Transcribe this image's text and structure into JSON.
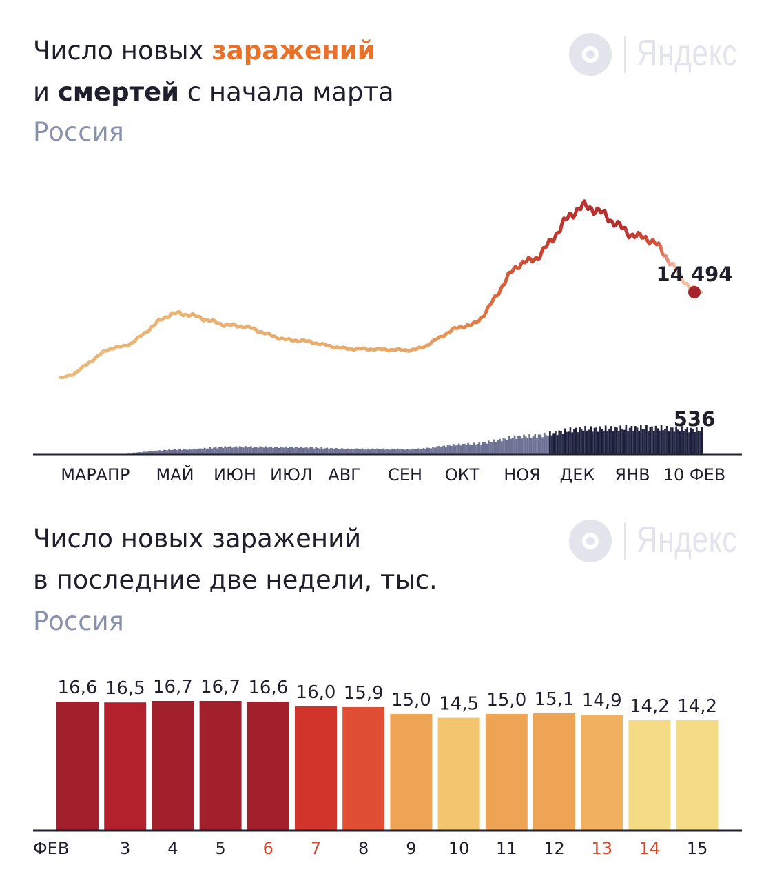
{
  "brand": {
    "logo_text": "Яндекс"
  },
  "top_chart": {
    "title_line1_plain": "Число новых ",
    "title_line1_highlight": "заражений",
    "title_line2_prefix": "и ",
    "title_line2_bold": "смертей",
    "title_line2_rest": " с начала марта",
    "subtitle": "Россия"
  },
  "bottom_chart": {
    "title_line1": "Число новых заражений",
    "title_line2": "в последние две недели, тыс.",
    "subtitle": "Россия"
  },
  "colors": {
    "light_yellow": "#f6db86",
    "yellow": "#f3c56f",
    "orange": "#eda555",
    "orange_red": "#e04f34",
    "red": "#d1342a",
    "dark_red": "#a21f2c",
    "deaths_dark": "#1c1f3a",
    "deaths_light": "#6d7295",
    "weekend_tick": "#d24a2e",
    "axis": "#1f1f2b",
    "subtitle": "#8a91ad"
  },
  "chart_data": [
    {
      "type": "line",
      "series": [
        {
          "name": "заражений",
          "x": [
            "МАР",
            "АПР",
            "МАЙ",
            "ИЮН",
            "ИЮЛ",
            "АВГ",
            "СЕН",
            "ОКТ",
            "НОЯ",
            "ДЕК",
            "ЯНВ",
            "ФЕВ"
          ],
          "values": [
            500,
            5500,
            11000,
            9000,
            6600,
            5200,
            5000,
            9000,
            19500,
            28500,
            23500,
            14494
          ]
        },
        {
          "name": "смертей",
          "type": "bar",
          "x": [
            "МАР",
            "АПР",
            "МАЙ",
            "ИЮН",
            "ИЮЛ",
            "АВГ",
            "СЕН",
            "ОКТ",
            "НОЯ",
            "ДЕК",
            "ЯНВ",
            "ФЕВ"
          ],
          "values": [
            0,
            20,
            100,
            160,
            150,
            115,
            110,
            220,
            390,
            550,
            570,
            536
          ]
        }
      ],
      "labels": {
        "last_cases": "14 494",
        "last_deaths": "536"
      },
      "x_ticks": [
        "МАР",
        "АПР",
        "МАЙ",
        "ИЮН",
        "ИЮЛ",
        "АВГ",
        "СЕН",
        "ОКТ",
        "НОЯ",
        "ДЕК",
        "ЯНВ",
        "10 ФЕВ"
      ]
    },
    {
      "type": "bar",
      "categories": [
        "ФЕВ",
        "3",
        "4",
        "5",
        "6",
        "7",
        "8",
        "9",
        "10",
        "11",
        "12",
        "13",
        "14",
        "15"
      ],
      "values": [
        16.6,
        16.5,
        16.7,
        16.7,
        16.6,
        16.0,
        15.9,
        15.0,
        14.5,
        15.0,
        15.1,
        14.9,
        14.2,
        14.2
      ],
      "value_labels": [
        "16,6",
        "16,5",
        "16,7",
        "16,7",
        "16,6",
        "16,0",
        "15,9",
        "15,0",
        "14,5",
        "15,0",
        "15,1",
        "14,9",
        "14,2",
        "14,2"
      ],
      "bar_colors": [
        "#a21f2c",
        "#b3222c",
        "#a21f2c",
        "#a21f2c",
        "#a21f2c",
        "#d1342a",
        "#e04f34",
        "#eda555",
        "#f3c56f",
        "#eda555",
        "#eda555",
        "#f0b060",
        "#f6db86",
        "#f6db86"
      ],
      "weekend": [
        false,
        false,
        false,
        false,
        true,
        true,
        false,
        false,
        false,
        false,
        false,
        true,
        true,
        false
      ]
    }
  ]
}
